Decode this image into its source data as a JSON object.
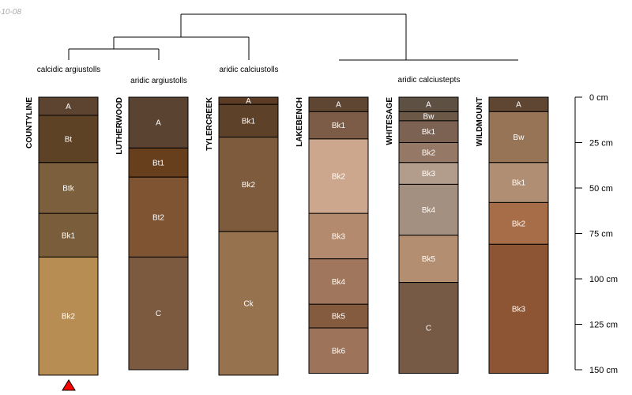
{
  "date_label": "-10-08",
  "chart_data": {
    "type": "soil-profile-sketch",
    "y_axis": {
      "unit": "cm",
      "range": [
        0,
        150
      ],
      "ticks": [
        {
          "value": 0,
          "label": "0 cm"
        },
        {
          "value": 25,
          "label": "25 cm"
        },
        {
          "value": 50,
          "label": "50 cm"
        },
        {
          "value": 75,
          "label": "75 cm"
        },
        {
          "value": 100,
          "label": "100 cm"
        },
        {
          "value": 125,
          "label": "125 cm"
        },
        {
          "value": 150,
          "label": "150 cm"
        }
      ]
    },
    "taxonomy_labels": [
      {
        "text": "calcidic argiustolls",
        "profiles": [
          "COUNTYLINE"
        ]
      },
      {
        "text": "aridic argiustolls",
        "profiles": [
          "LUTHERWOOD"
        ]
      },
      {
        "text": "aridic calciustolls",
        "profiles": [
          "TYLERCREEK"
        ]
      },
      {
        "text": "aridic calciustepts",
        "profiles": [
          "LAKEBENCH",
          "WHITESAGE",
          "WILDMOUNT"
        ]
      }
    ],
    "profiles": [
      {
        "name": "COUNTYLINE",
        "marker": "red-triangle",
        "horizons": [
          {
            "name": "A",
            "top": 0,
            "bottom": 10,
            "color": "#5c4430"
          },
          {
            "name": "Bt",
            "top": 10,
            "bottom": 36,
            "color": "#5d4226"
          },
          {
            "name": "Btk",
            "top": 36,
            "bottom": 64,
            "color": "#7c5f3c"
          },
          {
            "name": "Bk1",
            "top": 64,
            "bottom": 88,
            "color": "#7a5d3a"
          },
          {
            "name": "Bk2",
            "top": 88,
            "bottom": 153,
            "color": "#b78d54"
          }
        ]
      },
      {
        "name": "LUTHERWOOD",
        "horizons": [
          {
            "name": "A",
            "top": 0,
            "bottom": 28,
            "color": "#5b4331"
          },
          {
            "name": "Bt1",
            "top": 28,
            "bottom": 44,
            "color": "#683f1c"
          },
          {
            "name": "Bt2",
            "top": 44,
            "bottom": 88,
            "color": "#7f5433"
          },
          {
            "name": "C",
            "top": 88,
            "bottom": 150,
            "color": "#7b5a3f"
          }
        ]
      },
      {
        "name": "TYLERCREEK",
        "horizons": [
          {
            "name": "A",
            "top": 0,
            "bottom": 4,
            "color": "#5c3c24"
          },
          {
            "name": "Bk1",
            "top": 4,
            "bottom": 22,
            "color": "#5d4129"
          },
          {
            "name": "Bk2",
            "top": 22,
            "bottom": 74,
            "color": "#7d5b3c"
          },
          {
            "name": "Ck",
            "top": 74,
            "bottom": 153,
            "color": "#97724f"
          }
        ]
      },
      {
        "name": "LAKEBENCH",
        "horizons": [
          {
            "name": "A",
            "top": 0,
            "bottom": 8,
            "color": "#5e4632"
          },
          {
            "name": "Bk1",
            "top": 8,
            "bottom": 23,
            "color": "#7c5c46"
          },
          {
            "name": "Bk2",
            "top": 23,
            "bottom": 64,
            "color": "#cca78d"
          },
          {
            "name": "Bk3",
            "top": 64,
            "bottom": 89,
            "color": "#b48a6e"
          },
          {
            "name": "Bk4",
            "top": 89,
            "bottom": 114,
            "color": "#a0765c"
          },
          {
            "name": "Bk5",
            "top": 114,
            "bottom": 127,
            "color": "#855b40"
          },
          {
            "name": "Bk6",
            "top": 127,
            "bottom": 152,
            "color": "#9d735a"
          }
        ]
      },
      {
        "name": "WHITESAGE",
        "horizons": [
          {
            "name": "A",
            "top": 0,
            "bottom": 8,
            "color": "#5f5044"
          },
          {
            "name": "Bw",
            "top": 8,
            "bottom": 13,
            "color": "#6b5847"
          },
          {
            "name": "Bk1",
            "top": 13,
            "bottom": 25,
            "color": "#7b6252"
          },
          {
            "name": "Bk2",
            "top": 25,
            "bottom": 36,
            "color": "#957865"
          },
          {
            "name": "Bk3",
            "top": 36,
            "bottom": 48,
            "color": "#b29c8b"
          },
          {
            "name": "Bk4",
            "top": 48,
            "bottom": 76,
            "color": "#a39080"
          },
          {
            "name": "Bk5",
            "top": 76,
            "bottom": 102,
            "color": "#b38e70"
          },
          {
            "name": "C",
            "top": 102,
            "bottom": 152,
            "color": "#765a45"
          }
        ]
      },
      {
        "name": "WILDMOUNT",
        "horizons": [
          {
            "name": "A",
            "top": 0,
            "bottom": 8,
            "color": "#5e4632"
          },
          {
            "name": "Bw",
            "top": 8,
            "bottom": 36,
            "color": "#977456"
          },
          {
            "name": "Bk1",
            "top": 36,
            "bottom": 58,
            "color": "#b08e73"
          },
          {
            "name": "Bk2",
            "top": 58,
            "bottom": 81,
            "color": "#a76c48"
          },
          {
            "name": "Bk3",
            "top": 81,
            "bottom": 152,
            "color": "#8d5533"
          }
        ]
      }
    ]
  }
}
